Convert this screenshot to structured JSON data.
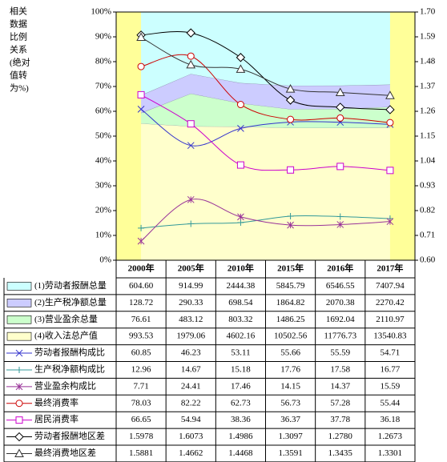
{
  "chart_data": {
    "type": "area",
    "ylabel": [
      "相关",
      "数据",
      "比例",
      "关系",
      "(绝对",
      "值转",
      "为%)"
    ],
    "categories": [
      "2000年",
      "2005年",
      "2010年",
      "2015年",
      "2016年",
      "2017年"
    ],
    "ylim": [
      0,
      100
    ],
    "yticks": [
      {
        "value": 0,
        "label": "0%"
      },
      {
        "value": 10,
        "label": "10%"
      },
      {
        "value": 20,
        "label": "20%"
      },
      {
        "value": 30,
        "label": "30%"
      },
      {
        "value": 40,
        "label": "40%"
      },
      {
        "value": 50,
        "label": "50%"
      },
      {
        "value": 60,
        "label": "60%"
      },
      {
        "value": 70,
        "label": "70%"
      },
      {
        "value": 80,
        "label": "80%"
      },
      {
        "value": 90,
        "label": "90%"
      },
      {
        "value": 100,
        "label": "100%"
      }
    ],
    "y2lim": [
      0.6,
      1.7
    ],
    "y2ticks": [
      {
        "value": 0.6,
        "label": "0.60"
      },
      0.71,
      0.82,
      0.93,
      1.04,
      1.15,
      1.26,
      1.37,
      1.48,
      1.59,
      {
        "value": 1.7,
        "label": "1.70"
      }
    ],
    "stacking": "percent",
    "series": [
      {
        "name": "(1)劳动者报酬总量",
        "type": "area",
        "color": "#ccffff",
        "values": [
          604.6,
          914.99,
          2444.38,
          5845.79,
          6546.55,
          7407.94
        ],
        "value_labels": [
          "604.60",
          "914.99",
          "2444.38",
          "5845.79",
          "6546.55",
          "7407.94"
        ]
      },
      {
        "name": "(2)生产税净额总量",
        "type": "area",
        "color": "#ccccff",
        "values": [
          128.72,
          290.33,
          698.54,
          1864.82,
          2070.38,
          2270.42
        ]
      },
      {
        "name": "(3)营业盈余总量",
        "type": "area",
        "color": "#ccffcc",
        "values": [
          76.61,
          483.12,
          803.32,
          1486.25,
          1692.04,
          2110.97
        ]
      },
      {
        "name": "(4)收入法总产值",
        "type": "area",
        "color": "#ffffcc",
        "values": [
          993.53,
          1979.06,
          4602.16,
          10502.56,
          11776.73,
          13540.83
        ]
      },
      {
        "name": "劳动者报酬构成比",
        "type": "line",
        "marker": "x",
        "color": "#3333cc",
        "values": [
          60.85,
          46.23,
          53.11,
          55.66,
          55.59,
          54.71
        ]
      },
      {
        "name": "生产税净额构成比",
        "type": "line",
        "marker": "plus",
        "color": "#339999",
        "values": [
          12.96,
          14.67,
          15.18,
          17.76,
          17.58,
          16.77
        ]
      },
      {
        "name": "营业盈余构成比",
        "type": "line",
        "marker": "star",
        "color": "#993399",
        "values": [
          7.71,
          24.41,
          17.46,
          14.15,
          14.37,
          15.59
        ]
      },
      {
        "name": "最终消费率",
        "type": "line",
        "marker": "circle",
        "color": "#cc0000",
        "values": [
          78.03,
          82.22,
          62.73,
          56.73,
          57.28,
          55.44
        ]
      },
      {
        "name": "居民消费率",
        "type": "line",
        "marker": "square",
        "color": "#cc00cc",
        "values": [
          66.65,
          54.94,
          38.36,
          36.37,
          37.78,
          36.18
        ]
      },
      {
        "name": "劳动者报酬地区差",
        "type": "line",
        "marker": "diamond",
        "color": "#000000",
        "axis": "y2",
        "values": [
          1.5978,
          1.6073,
          1.4986,
          1.3097,
          1.278,
          1.2673
        ],
        "value_labels": [
          "1.5978",
          "1.6073",
          "1.4986",
          "1.3097",
          "1.2780",
          "1.2673"
        ]
      },
      {
        "name": "最终消费地区差",
        "type": "line",
        "marker": "triangle",
        "color": "#333333",
        "axis": "y2",
        "values": [
          1.5881,
          1.4662,
          1.4468,
          1.3591,
          1.3435,
          1.3301
        ]
      }
    ]
  }
}
